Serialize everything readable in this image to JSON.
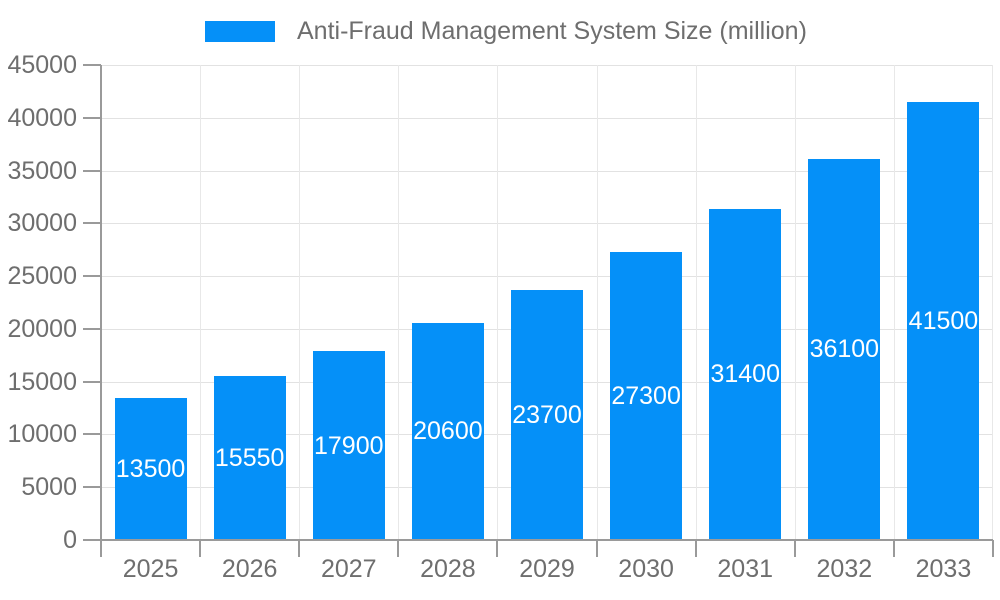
{
  "legend": {
    "label": "Anti-Fraud Management System Size (million)",
    "swatch_color": "#0590F8"
  },
  "chart_data": {
    "type": "bar",
    "title": "Anti-Fraud Management System Size (million)",
    "categories": [
      "2025",
      "2026",
      "2027",
      "2028",
      "2029",
      "2030",
      "2031",
      "2032",
      "2033"
    ],
    "series": [
      {
        "name": "Anti-Fraud Management System Size (million)",
        "values": [
          13500,
          15550,
          17900,
          20600,
          23700,
          27300,
          31400,
          36100,
          41500
        ],
        "color": "#0590F8"
      }
    ],
    "value_labels": [
      "13500",
      "15550",
      "17900",
      "20600",
      "23700",
      "27300",
      "31400",
      "36100",
      "41500"
    ],
    "value_label_position": "inside-center",
    "xlabel": "",
    "ylabel": "",
    "ylim": [
      0,
      45000
    ],
    "y_tick_step": 5000,
    "y_tick_labels": [
      "0",
      "5000",
      "10000",
      "15000",
      "20000",
      "25000",
      "30000",
      "35000",
      "40000",
      "45000"
    ],
    "grid": true,
    "legend_position": "top-center"
  },
  "colors": {
    "bar": "#0590F8",
    "axis_line": "#9a9a9a",
    "gridline_h": "#e2e2e2",
    "gridline_v": "#e8e8e8",
    "tick_text": "#6e6e6e",
    "value_label_text": "#ffffff",
    "background": "#ffffff"
  }
}
